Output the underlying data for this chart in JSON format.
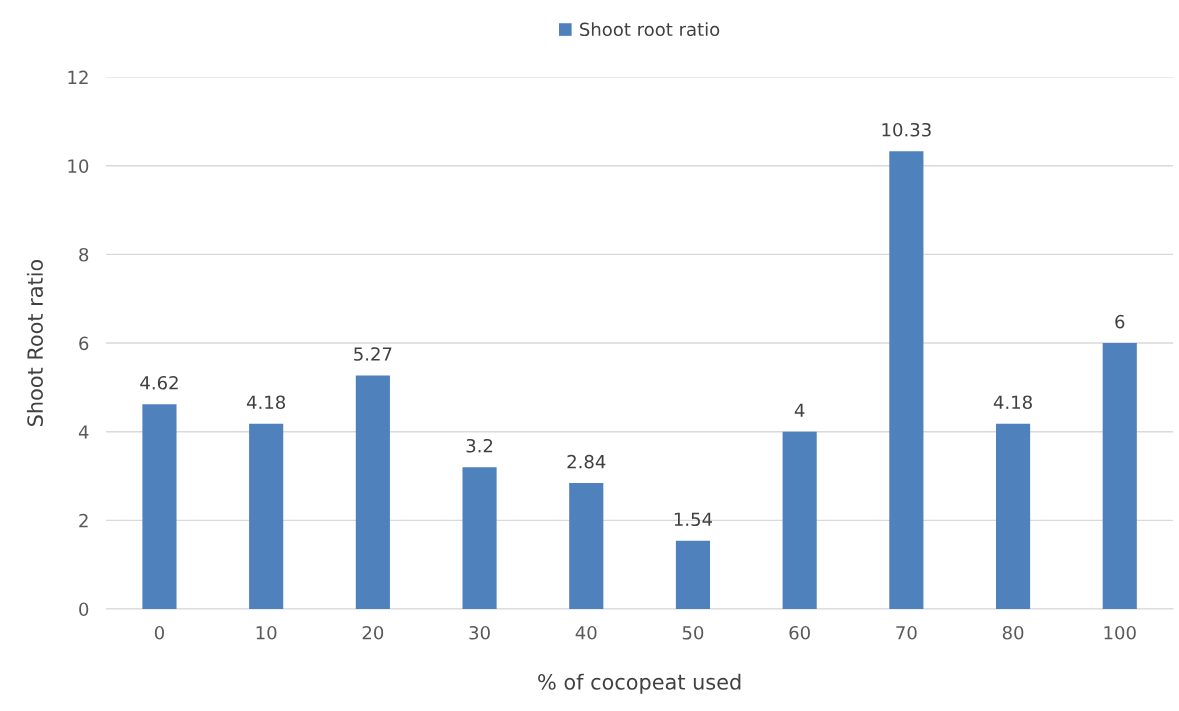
{
  "chart_data": {
    "type": "bar",
    "xlabel": "% of cocopeat used",
    "ylabel": "Shoot Root ratio",
    "categories": [
      "0",
      "10",
      "20",
      "30",
      "40",
      "50",
      "60",
      "70",
      "80",
      "100"
    ],
    "series": [
      {
        "name": "Shoot root ratio",
        "color": "#4f81bd",
        "values": [
          4.62,
          4.18,
          5.27,
          3.2,
          2.84,
          1.54,
          4,
          10.33,
          4.18,
          6
        ]
      }
    ],
    "ylim": [
      0,
      12
    ],
    "yticks": [
      0,
      2,
      4,
      6,
      8,
      10,
      12
    ],
    "grid": "y",
    "legend": "top",
    "data_labels": true
  }
}
